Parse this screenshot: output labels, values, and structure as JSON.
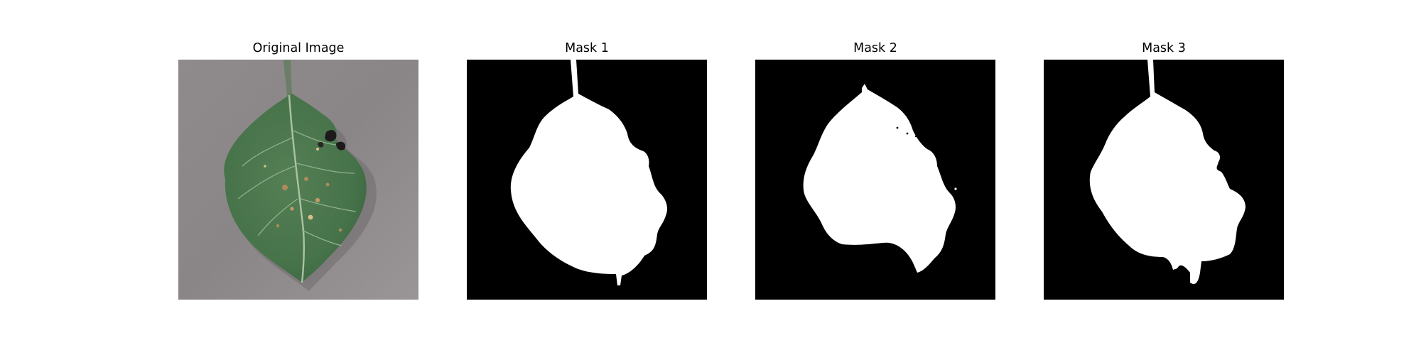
{
  "figure": {
    "panels": [
      {
        "title": "Original Image"
      },
      {
        "title": "Mask 1"
      },
      {
        "title": "Mask 2"
      },
      {
        "title": "Mask 3"
      }
    ]
  },
  "colors": {
    "background": "#ffffff",
    "title_text": "#000000",
    "mask_background": "#000000",
    "mask_foreground": "#ffffff",
    "photo_backdrop": "#8e8a8c",
    "leaf_green": "#4a7a4c",
    "leaf_vein": "#a9c4a4",
    "leaf_spot": "#b08a5a",
    "hole": "#1d1a1b"
  }
}
